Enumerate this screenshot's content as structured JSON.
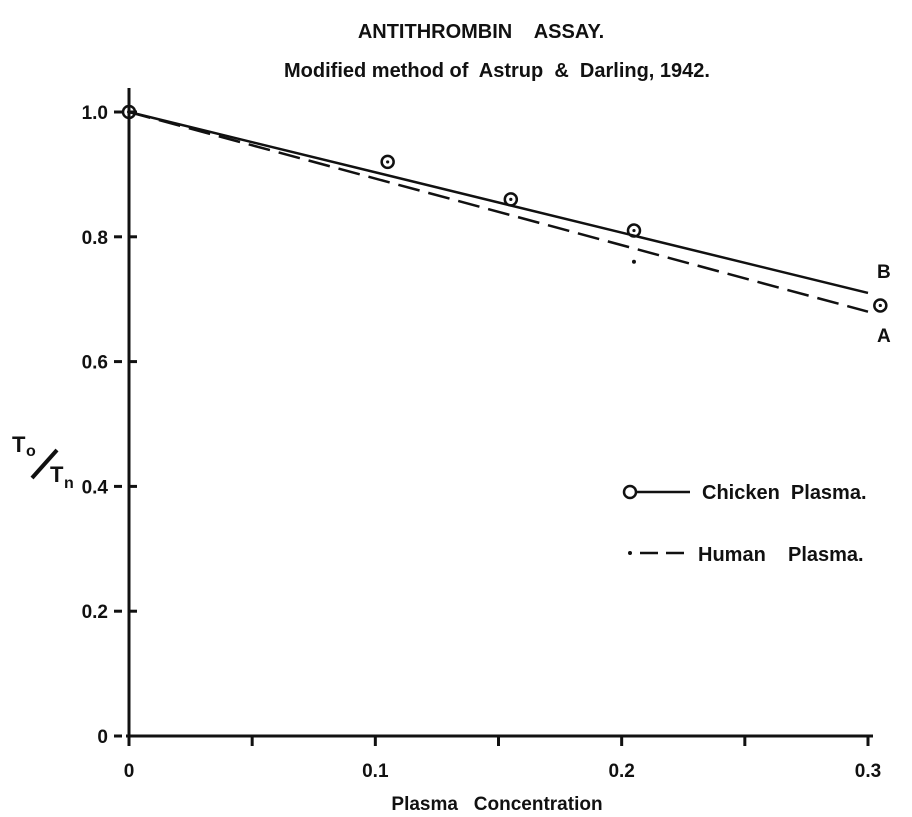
{
  "chart_data": {
    "type": "line",
    "title": "ANTITHROMBIN    ASSAY.",
    "subtitle": "Modified method of  Astrup  &  Darling, 1942.",
    "xlabel": "Plasma   Concentration",
    "ylabel": {
      "numerator": "T",
      "numerator_sub": "o",
      "denominator": "T",
      "denominator_sub": "n"
    },
    "xlim": [
      0,
      0.3
    ],
    "ylim": [
      0,
      1.0
    ],
    "x_tick_labels": [
      "0",
      "0.1",
      "0.2",
      "0.3"
    ],
    "x_minor_ticks": [
      0.05,
      0.15,
      0.25
    ],
    "y_tick_labels": [
      "0",
      "0.2",
      "0.4",
      "0.6",
      "0.8",
      "1.0"
    ],
    "grid": false,
    "legend_placement": "right",
    "series": [
      {
        "name": "Chicken  Plasma.",
        "style": "solid",
        "marker": "circle",
        "color": "#111111",
        "line_label": "B",
        "line": {
          "x": [
            0,
            0.3
          ],
          "y": [
            1.0,
            0.71
          ]
        },
        "points": [
          {
            "x": 0.0,
            "y": 1.0
          },
          {
            "x": 0.105,
            "y": 0.92
          },
          {
            "x": 0.155,
            "y": 0.86
          },
          {
            "x": 0.205,
            "y": 0.81
          },
          {
            "x": 0.305,
            "y": 0.69
          }
        ]
      },
      {
        "name": "Human    Plasma.",
        "style": "dashed",
        "marker": "dot",
        "color": "#111111",
        "line_label": "A",
        "line": {
          "x": [
            0,
            0.3
          ],
          "y": [
            1.0,
            0.68
          ]
        },
        "points": [
          {
            "x": 0.0,
            "y": 1.0
          },
          {
            "x": 0.205,
            "y": 0.76
          }
        ]
      }
    ]
  }
}
